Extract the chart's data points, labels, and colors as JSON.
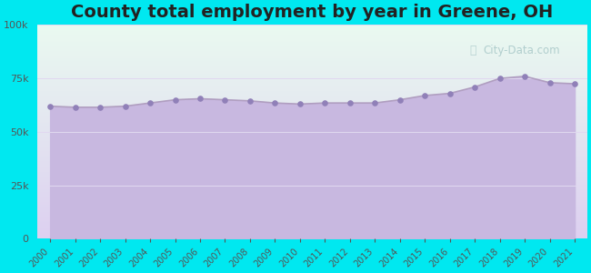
{
  "title": "County total employment by year in Greene, OH",
  "years": [
    2000,
    2001,
    2002,
    2003,
    2004,
    2005,
    2006,
    2007,
    2008,
    2009,
    2010,
    2011,
    2012,
    2013,
    2014,
    2015,
    2016,
    2017,
    2018,
    2019,
    2020,
    2021
  ],
  "values": [
    62000,
    61500,
    61500,
    62000,
    63500,
    65000,
    65500,
    65000,
    64500,
    63500,
    63000,
    63500,
    63500,
    63500,
    65000,
    67000,
    68000,
    71000,
    75000,
    76000,
    73000,
    72500
  ],
  "ylim": [
    0,
    100000
  ],
  "yticks": [
    0,
    25000,
    50000,
    75000,
    100000
  ],
  "line_color": "#b09ec0",
  "fill_color": "#c8b8e0",
  "dot_color": "#9080b8",
  "bg_outer": "#00e8f0",
  "bg_plot_top": "#eafaf0",
  "bg_plot_bottom": "#ddd0f0",
  "title_fontsize": 14,
  "title_fontweight": "bold",
  "title_color": "#222222",
  "watermark": "City-Data.com",
  "watermark_color": "#a8c8c8",
  "grid_color": "#e0d8f0",
  "tick_color": "#555555"
}
